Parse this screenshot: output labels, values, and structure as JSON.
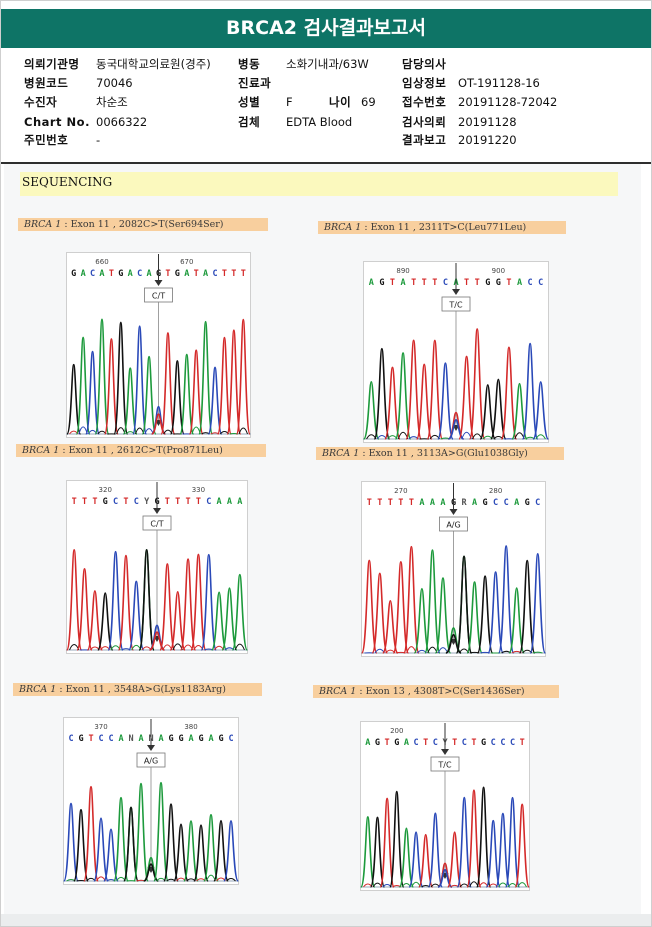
{
  "report": {
    "title": "BRCA2 검사결과보고서"
  },
  "patient_info": {
    "institution": {
      "label": "의뢰기관명",
      "value": "동국대학교의료원(경주)"
    },
    "ward": {
      "label": "병동",
      "value": "소화기내과/63W"
    },
    "doctor": {
      "label": "담당의사",
      "value": ""
    },
    "hospital_code": {
      "label": "병원코드",
      "value": "70046"
    },
    "department": {
      "label": "진료과",
      "value": ""
    },
    "clinical_info": {
      "label": "임상정보",
      "value": "OT-191128-16"
    },
    "patient_name": {
      "label": "수진자",
      "value": "차순조"
    },
    "sex": {
      "label": "성별",
      "value": "F"
    },
    "age": {
      "label": "나이",
      "value": "69"
    },
    "receipt_no": {
      "label": "접수번호",
      "value": "20191128-72042"
    },
    "chart_no": {
      "label": "Chart No.",
      "value": "0066322"
    },
    "specimen": {
      "label": "검체",
      "value": "EDTA Blood"
    },
    "request_date": {
      "label": "검사의뢰",
      "value": "20191128"
    },
    "resident_no": {
      "label": "주민번호",
      "value": "-"
    },
    "report_date": {
      "label": "결과보고",
      "value": "20191220"
    }
  },
  "section": {
    "title": "SEQUENCING"
  },
  "chromatograms": [
    {
      "gene": "BRCA 1",
      "variant": ": Exon 11 , 2082C>T(Ser694Ser)",
      "sequence": "GACATGACAGTGATACTTT",
      "pos1": "660",
      "pos2": "670",
      "call": "C/T"
    },
    {
      "gene": "BRCA 1",
      "variant": ": Exon 11 , 2311T>C(Leu771Leu)",
      "sequence": "AGTATTTCATTGGTACC",
      "pos1": "890",
      "pos2": "900",
      "call": "T/C"
    },
    {
      "gene": "BRCA 1",
      "variant": ": Exon 11 , 2612C>T(Pro871Leu)",
      "sequence": "TTTGCTCYGTTTTCAAA",
      "pos1": "320",
      "pos2": "330",
      "call": "C/T"
    },
    {
      "gene": "BRCA 1",
      "variant": ": Exon 11 , 3113A>G(Glu1038Gly)",
      "sequence": "TTTTTAAAGRAGCCAGC",
      "pos1": "270",
      "pos2": "280",
      "call": "A/G"
    },
    {
      "gene": "BRCA 1",
      "variant": ": Exon 11 , 3548A>G(Lys1183Arg)",
      "sequence": "CGTCCANANAGGAGAGC",
      "pos1": "370",
      "pos2": "380",
      "call": "A/G"
    },
    {
      "gene": "BRCA 1",
      "variant": ": Exon 13 , 4308T>C(Ser1436Ser)",
      "sequence": "AGTGACTCYTCTGCCCT",
      "pos1": "200",
      "pos2": "",
      "call": "T/C"
    }
  ],
  "colors": {
    "header_bg": "#0e7466",
    "A": "#1d9a3c",
    "C": "#2a49b8",
    "G": "#111111",
    "T": "#d42a2a",
    "title_bg": "#f8cf9e",
    "section_bg": "#fbf9be"
  }
}
